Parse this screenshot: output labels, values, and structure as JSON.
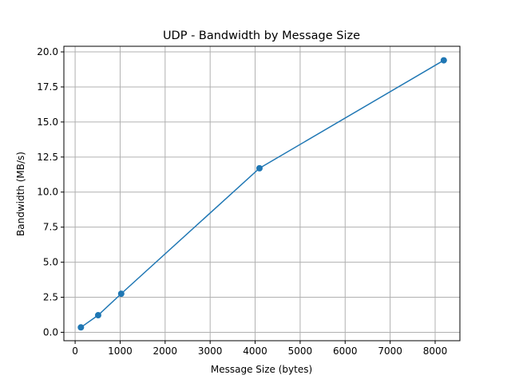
{
  "chart_data": {
    "type": "line",
    "title": "UDP - Bandwidth by Message Size",
    "xlabel": "Message Size (bytes)",
    "ylabel": "Bandwidth (MB/s)",
    "xlim": [
      -250,
      8550
    ],
    "ylim": [
      -0.6,
      20.4
    ],
    "x_ticks": [
      0,
      1000,
      2000,
      3000,
      4000,
      5000,
      6000,
      7000,
      8000
    ],
    "y_ticks": [
      0.0,
      2.5,
      5.0,
      7.5,
      10.0,
      12.5,
      15.0,
      17.5,
      20.0
    ],
    "x_tick_labels": [
      "0",
      "1000",
      "2000",
      "3000",
      "4000",
      "5000",
      "6000",
      "7000",
      "8000"
    ],
    "y_tick_labels": [
      "0.0",
      "2.5",
      "5.0",
      "7.5",
      "10.0",
      "12.5",
      "15.0",
      "17.5",
      "20.0"
    ],
    "grid": true,
    "series": [
      {
        "color": "#1f77b4",
        "marker": "circle",
        "x": [
          128,
          512,
          1024,
          4096,
          8192
        ],
        "y": [
          0.35,
          1.22,
          2.75,
          11.7,
          19.4
        ]
      }
    ]
  }
}
